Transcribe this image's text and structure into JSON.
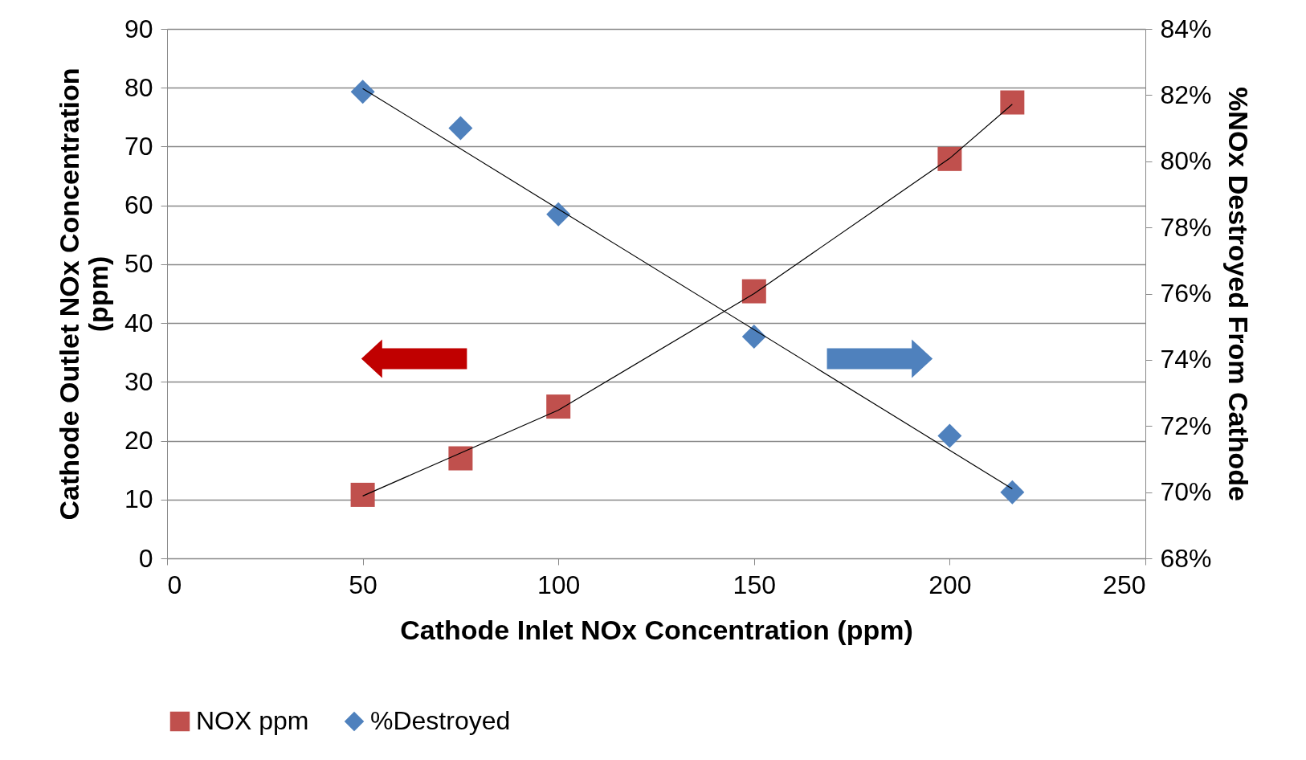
{
  "chart_data": {
    "type": "scatter",
    "xlabel": "Cathode Inlet NOx Concentration (ppm)",
    "ylabel": "Cathode Outlet NOx Concentration (ppm)",
    "y2label": "%NOx Destroyed From Cathode",
    "x": [
      50,
      75,
      100,
      150,
      200,
      216
    ],
    "series": [
      {
        "name": "NOX ppm",
        "color": "#c0504d",
        "marker": "square",
        "values": [
          10.8,
          17.0,
          25.8,
          45.4,
          67.9,
          77.5
        ]
      },
      {
        "name": "%Destroyed",
        "color": "#4f81bd",
        "marker": "diamond",
        "axis": "y2",
        "values": [
          82.1,
          81.0,
          78.4,
          74.7,
          71.7,
          70.0
        ]
      },
      {
        "type": "line",
        "color": "#000000",
        "x": [
          50,
          100,
          150,
          200,
          216
        ],
        "values": [
          10.6,
          25.2,
          45.0,
          68.0,
          77.2
        ]
      },
      {
        "type": "line",
        "color": "#000000",
        "axis": "y2",
        "x": [
          50,
          216
        ],
        "values": [
          82.2,
          70.1
        ]
      }
    ],
    "xlim": [
      0,
      250
    ],
    "xticks": [
      0,
      50,
      100,
      150,
      200,
      250
    ],
    "ylim": [
      0,
      90
    ],
    "yticks": [
      0,
      10,
      20,
      30,
      40,
      50,
      60,
      70,
      80,
      90
    ],
    "y2lim": [
      68,
      84
    ],
    "y2ticks": [
      {
        "value": 68,
        "label": "68%"
      },
      {
        "value": 70,
        "label": "70%"
      },
      {
        "value": 72,
        "label": "72%"
      },
      {
        "value": 74,
        "label": "74%"
      },
      {
        "value": 76,
        "label": "76%"
      },
      {
        "value": 78,
        "label": "78%"
      },
      {
        "value": 80,
        "label": "80%"
      },
      {
        "value": 82,
        "label": "82%"
      },
      {
        "value": 84,
        "label": "84%"
      }
    ],
    "grid": "y",
    "legend": "bottom"
  }
}
